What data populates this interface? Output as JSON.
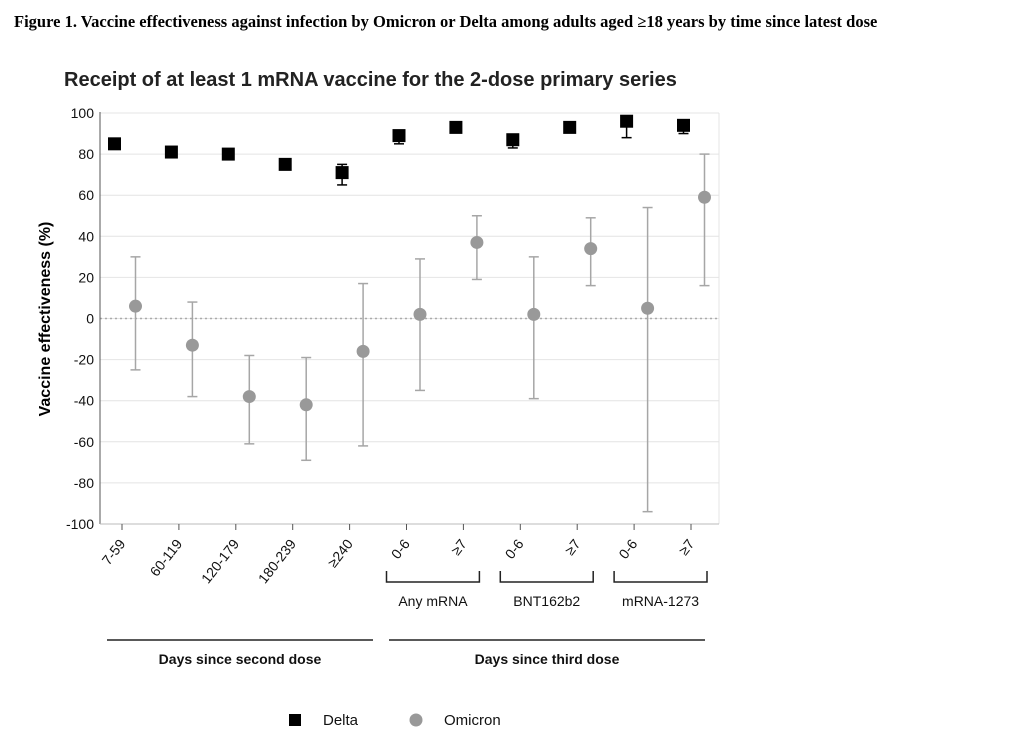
{
  "caption": "Figure 1. Vaccine effectiveness against infection by Omicron or Delta among adults aged ≥18 years by time since latest dose",
  "chart_data": {
    "type": "scatter",
    "title": "Receipt of at least 1 mRNA vaccine for the 2-dose primary series",
    "ylabel": "Vaccine effectiveness (%)",
    "ylim": [
      -100,
      100
    ],
    "yticks": [
      100,
      80,
      60,
      40,
      20,
      0,
      -20,
      -40,
      -60,
      -80,
      -100
    ],
    "grid": true,
    "reference_line": 0,
    "categories": [
      "7-59",
      "60-119",
      "120-179",
      "180-239",
      "≥240",
      "0-6",
      "≥7",
      "0-6",
      "≥7",
      "0-6",
      "≥7"
    ],
    "subgroups": [
      {
        "label": "Any mRNA",
        "from": 5,
        "to": 6
      },
      {
        "label": "BNT162b2",
        "from": 7,
        "to": 8
      },
      {
        "label": "mRNA-1273",
        "from": 9,
        "to": 10
      }
    ],
    "groups": [
      {
        "label": "Days since second dose",
        "from": 0,
        "to": 4
      },
      {
        "label": "Days since third dose",
        "from": 5,
        "to": 10
      }
    ],
    "series": [
      {
        "name": "Delta",
        "marker": "square",
        "color": "#000000",
        "values": [
          85,
          81,
          80,
          75,
          71,
          89,
          93,
          87,
          93,
          96,
          94
        ],
        "ci_low": [
          null,
          null,
          null,
          null,
          65,
          85,
          null,
          83,
          null,
          88,
          90
        ],
        "ci_high": [
          null,
          null,
          null,
          null,
          75,
          91,
          null,
          89,
          null,
          97,
          96
        ]
      },
      {
        "name": "Omicron",
        "marker": "circle",
        "color": "#999999",
        "values": [
          6,
          -13,
          -38,
          -42,
          -16,
          2,
          37,
          2,
          34,
          5,
          59
        ],
        "ci_low": [
          -25,
          -38,
          -61,
          -69,
          -62,
          -35,
          19,
          -39,
          16,
          -94,
          16
        ],
        "ci_high": [
          30,
          8,
          -18,
          -19,
          17,
          29,
          50,
          30,
          49,
          54,
          80
        ]
      }
    ],
    "legend_position": "bottom-center"
  }
}
